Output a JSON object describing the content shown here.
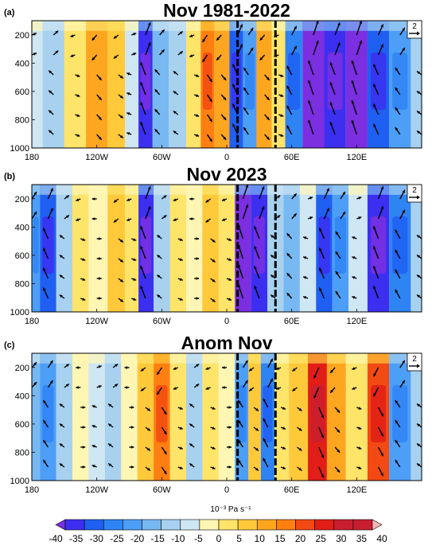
{
  "colors": {
    "neg40": "#7b2fe0",
    "neg35": "#3c2ff0",
    "neg30": "#1f5ff2",
    "neg25": "#2f84f4",
    "neg20": "#4d9ef6",
    "neg15": "#78b8f2",
    "neg10": "#a7d1ef",
    "neg5": "#cfe6f3",
    "zero": "#ffffff",
    "pos0": "#fff6b3",
    "pos5": "#ffe46a",
    "pos10": "#ffc93a",
    "pos15": "#ffa621",
    "pos20": "#ff7f10",
    "pos25": "#f24a12",
    "pos30": "#e21e18",
    "pos35": "#c91e30",
    "pos40": "#f7b3b8",
    "dash": "#000000"
  },
  "colorbar": {
    "unit_label": "10⁻³ Pa s⁻¹",
    "tick_labels": [
      "-40",
      "-35",
      "-30",
      "-25",
      "-20",
      "-15",
      "-10",
      "-5",
      "0",
      "5",
      "10",
      "15",
      "20",
      "25",
      "30",
      "35",
      "40"
    ]
  },
  "chart_data": [
    {
      "type": "heatmap",
      "panel_label": "(a)",
      "title": "Nov 1981-2022",
      "x_tick_labels": [
        "180",
        "120W",
        "60W",
        "0",
        "60E",
        "120E"
      ],
      "y_tick_labels": [
        "200",
        "400",
        "600",
        "800",
        "1000"
      ],
      "ylim": [
        1000,
        100
      ],
      "xlim": [
        -180,
        180
      ],
      "reference_vector": "2",
      "dashed_lines_lon": [
        10,
        45
      ],
      "omega_by_longitude": [
        {
          "lon": -180,
          "value": -5
        },
        {
          "lon": -160,
          "value": -12
        },
        {
          "lon": -140,
          "value": 5
        },
        {
          "lon": -120,
          "value": 15
        },
        {
          "lon": -100,
          "value": 10
        },
        {
          "lon": -88,
          "value": -5
        },
        {
          "lon": -75,
          "value": -35
        },
        {
          "lon": -62,
          "value": -15
        },
        {
          "lon": -45,
          "value": -10
        },
        {
          "lon": -30,
          "value": 5
        },
        {
          "lon": -18,
          "value": 20
        },
        {
          "lon": -5,
          "value": 15
        },
        {
          "lon": 10,
          "value": -30
        },
        {
          "lon": 20,
          "value": -20
        },
        {
          "lon": 35,
          "value": 15
        },
        {
          "lon": 48,
          "value": 5
        },
        {
          "lon": 60,
          "value": -25
        },
        {
          "lon": 80,
          "value": -40
        },
        {
          "lon": 100,
          "value": -35
        },
        {
          "lon": 120,
          "value": -40
        },
        {
          "lon": 140,
          "value": -30
        },
        {
          "lon": 160,
          "value": -20
        },
        {
          "lon": 180,
          "value": -10
        }
      ]
    },
    {
      "type": "heatmap",
      "panel_label": "(b)",
      "title": "Nov 2023",
      "x_tick_labels": [
        "180",
        "120W",
        "60W",
        "0",
        "60E",
        "120E"
      ],
      "y_tick_labels": [
        "200",
        "400",
        "600",
        "800",
        "1000"
      ],
      "ylim": [
        1000,
        100
      ],
      "xlim": [
        -180,
        180
      ],
      "reference_vector": "2",
      "dashed_lines_lon": [
        10,
        45
      ],
      "omega_by_longitude": [
        {
          "lon": -180,
          "value": -20
        },
        {
          "lon": -165,
          "value": -30
        },
        {
          "lon": -150,
          "value": -10
        },
        {
          "lon": -135,
          "value": 5
        },
        {
          "lon": -120,
          "value": 0
        },
        {
          "lon": -100,
          "value": 10
        },
        {
          "lon": -88,
          "value": 5
        },
        {
          "lon": -75,
          "value": -35
        },
        {
          "lon": -60,
          "value": -10
        },
        {
          "lon": -45,
          "value": 5
        },
        {
          "lon": -30,
          "value": 0
        },
        {
          "lon": -15,
          "value": 10
        },
        {
          "lon": 0,
          "value": 5
        },
        {
          "lon": 15,
          "value": -40
        },
        {
          "lon": 30,
          "value": -35
        },
        {
          "lon": 45,
          "value": -10
        },
        {
          "lon": 60,
          "value": -15
        },
        {
          "lon": 75,
          "value": -5
        },
        {
          "lon": 90,
          "value": -30
        },
        {
          "lon": 105,
          "value": -20
        },
        {
          "lon": 120,
          "value": -5
        },
        {
          "lon": 140,
          "value": -35
        },
        {
          "lon": 160,
          "value": -25
        },
        {
          "lon": 180,
          "value": -10
        }
      ]
    },
    {
      "type": "heatmap",
      "panel_label": "(c)",
      "title": "Anom Nov",
      "x_tick_labels": [
        "180",
        "120W",
        "60W",
        "0",
        "60E",
        "120E"
      ],
      "y_tick_labels": [
        "200",
        "400",
        "600",
        "800",
        "1000"
      ],
      "ylim": [
        1000,
        100
      ],
      "xlim": [
        -180,
        180
      ],
      "reference_vector": "2",
      "dashed_lines_lon": [
        10,
        45
      ],
      "omega_by_longitude": [
        {
          "lon": -180,
          "value": -15
        },
        {
          "lon": -165,
          "value": -20
        },
        {
          "lon": -150,
          "value": -10
        },
        {
          "lon": -135,
          "value": 0
        },
        {
          "lon": -120,
          "value": -5
        },
        {
          "lon": -105,
          "value": -10
        },
        {
          "lon": -90,
          "value": 0
        },
        {
          "lon": -75,
          "value": 10
        },
        {
          "lon": -60,
          "value": 20
        },
        {
          "lon": -45,
          "value": 5
        },
        {
          "lon": -30,
          "value": -10
        },
        {
          "lon": -15,
          "value": 5
        },
        {
          "lon": 0,
          "value": 0
        },
        {
          "lon": 15,
          "value": -20
        },
        {
          "lon": 25,
          "value": 10
        },
        {
          "lon": 38,
          "value": -25
        },
        {
          "lon": 50,
          "value": 5
        },
        {
          "lon": 65,
          "value": 10
        },
        {
          "lon": 85,
          "value": 30
        },
        {
          "lon": 100,
          "value": 15
        },
        {
          "lon": 120,
          "value": 5
        },
        {
          "lon": 140,
          "value": 25
        },
        {
          "lon": 160,
          "value": -20
        },
        {
          "lon": 180,
          "value": -10
        }
      ]
    }
  ]
}
